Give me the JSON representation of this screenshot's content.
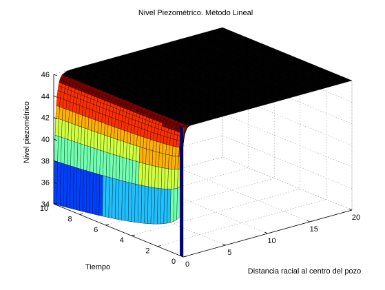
{
  "chart_data": {
    "type": "surface",
    "title": "Nivel Piezométrico. Método Lineal",
    "xlabel": "Distancia racial al centro del pozo",
    "ylabel": "Tiempo",
    "zlabel": "Nivel piezométrico",
    "xlim": [
      0,
      20
    ],
    "ylim": [
      0,
      10
    ],
    "zlim": [
      34,
      46
    ],
    "x_ticks": [
      "0",
      "5",
      "10",
      "15",
      "20"
    ],
    "y_ticks": [
      "0",
      "2",
      "4",
      "6",
      "8",
      "10"
    ],
    "z_ticks": [
      "34",
      "36",
      "38",
      "40",
      "42",
      "44",
      "46"
    ],
    "colormap": [
      "#00008f",
      "#0040ff",
      "#20c0ff",
      "#70ffb0",
      "#d0ff40",
      "#ffb000",
      "#ff3000",
      "#800000"
    ],
    "surface_description_values": {
      "initial_level_at_t0": 46,
      "level_at_well_for_t_gt_0": 34,
      "level_far_from_well": 46,
      "recovery_distance_approx": 0.5
    },
    "grid": true,
    "edge_color": "#000000"
  }
}
